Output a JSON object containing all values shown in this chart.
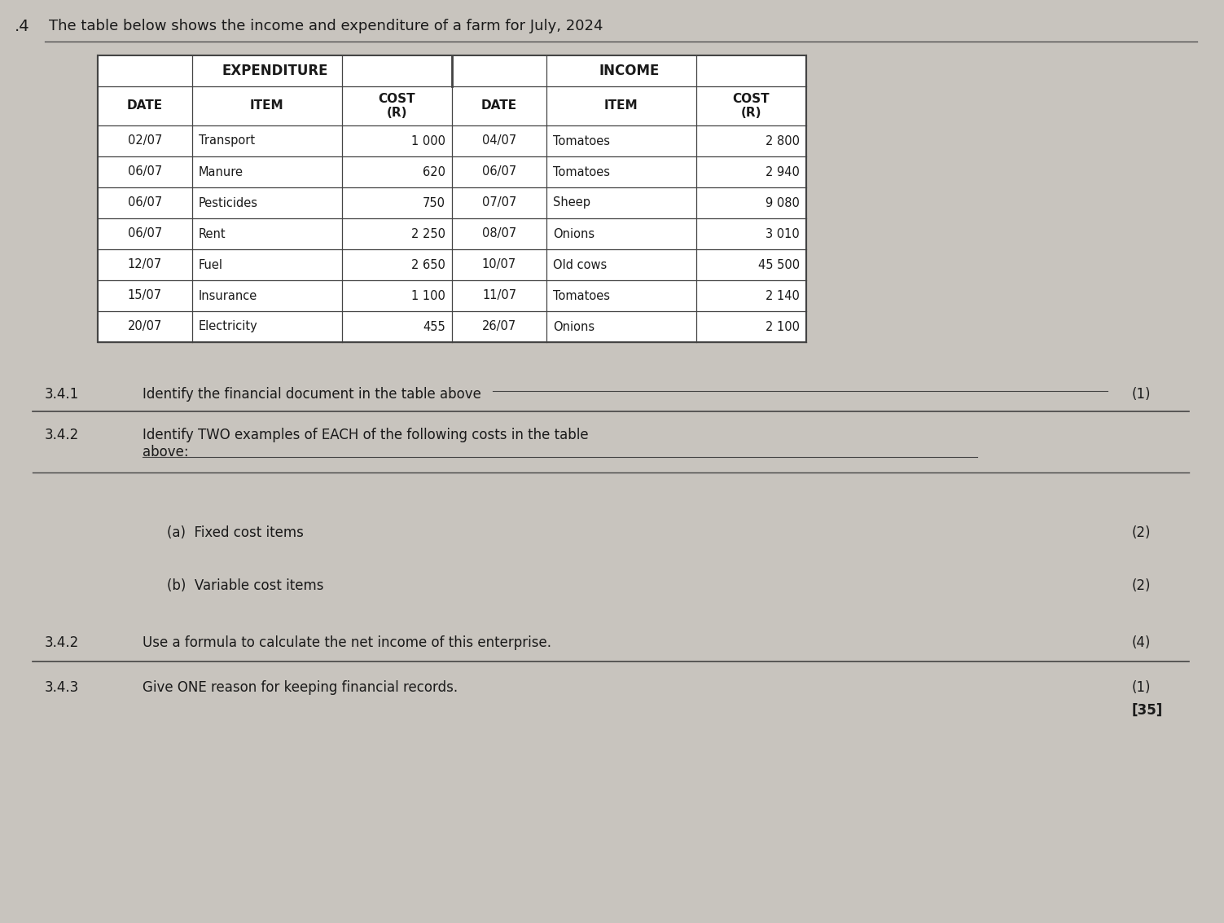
{
  "page_number": ".4",
  "intro_text": "The table below shows the income and expenditure of a farm for July, 2024",
  "expenditure_header": "EXPENDITURE",
  "income_header": "INCOME",
  "col_headers": [
    "DATE",
    "ITEM",
    "COST\n(R)",
    "DATE",
    "ITEM",
    "COST\n(R)"
  ],
  "expenditure_rows": [
    [
      "02/07",
      "Transport",
      "1 000"
    ],
    [
      "06/07",
      "Manure",
      "620"
    ],
    [
      "06/07",
      "Pesticides",
      "750"
    ],
    [
      "06/07",
      "Rent",
      "2 250"
    ],
    [
      "12/07",
      "Fuel",
      "2 650"
    ],
    [
      "15/07",
      "Insurance",
      "1 100"
    ],
    [
      "20/07",
      "Electricity",
      "455"
    ]
  ],
  "income_rows": [
    [
      "04/07",
      "Tomatoes",
      "2 800"
    ],
    [
      "06/07",
      "Tomatoes",
      "2 940"
    ],
    [
      "07/07",
      "Sheep",
      "9 080"
    ],
    [
      "08/07",
      "Onions",
      "3 010"
    ],
    [
      "10/07",
      "Old cows",
      "45 500"
    ],
    [
      "11/07",
      "Tomatoes",
      "2 140"
    ],
    [
      "26/07",
      "Onions",
      "2 100"
    ]
  ],
  "bg_color": "#c8c4be",
  "table_bg": "#ffffff",
  "text_color": "#1a1a1a",
  "line_color": "#444444"
}
